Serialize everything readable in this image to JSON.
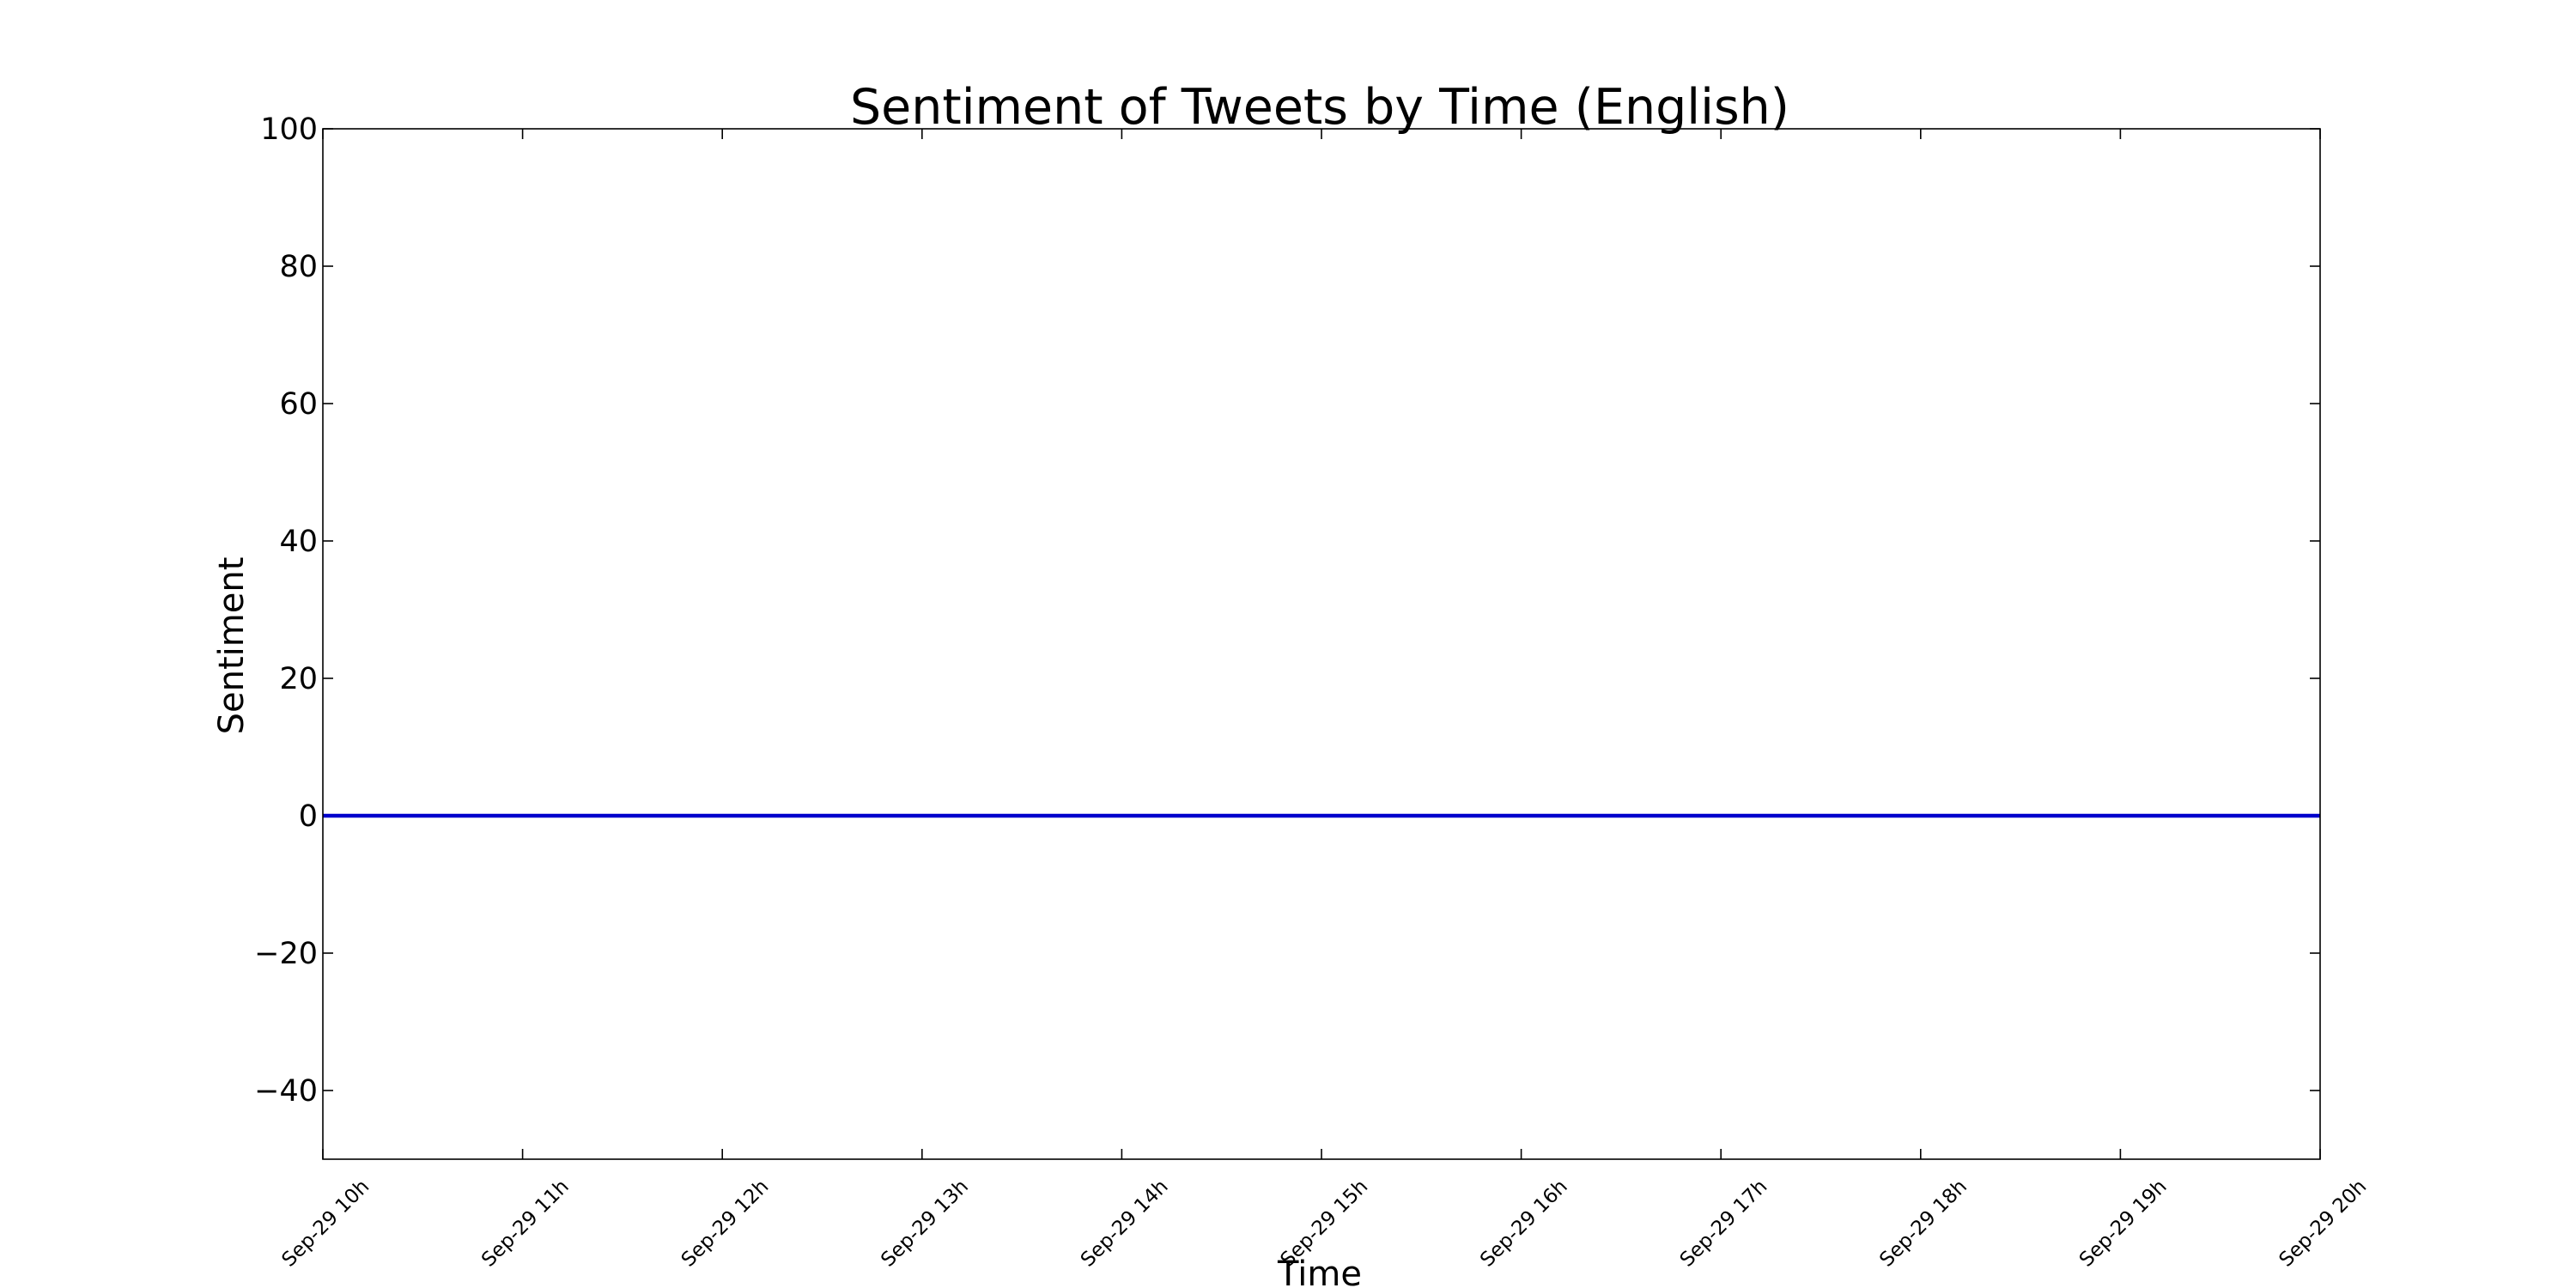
{
  "chart_data": {
    "type": "line",
    "title": "Sentiment of Tweets by Time (English)",
    "xlabel": "Time",
    "ylabel": "Sentiment",
    "x_tick_labels": [
      "Sep-29 10h",
      "Sep-29 11h",
      "Sep-29 12h",
      "Sep-29 13h",
      "Sep-29 14h",
      "Sep-29 15h",
      "Sep-29 16h",
      "Sep-29 17h",
      "Sep-29 18h",
      "Sep-29 19h",
      "Sep-29 20h"
    ],
    "y_tick_values": [
      100,
      80,
      60,
      40,
      20,
      0,
      -20,
      -40
    ],
    "y_tick_labels": [
      "100",
      "80",
      "60",
      "40",
      "20",
      "0",
      "−20",
      "−40"
    ],
    "ylim": [
      -50,
      100
    ],
    "grid": false,
    "legend": "none",
    "series": [
      {
        "color": "#0000cc",
        "x": [
          "Sep-29 10h",
          "Sep-29 11h",
          "Sep-29 12h",
          "Sep-29 13h",
          "Sep-29 14h",
          "Sep-29 15h",
          "Sep-29 16h",
          "Sep-29 17h",
          "Sep-29 18h",
          "Sep-29 19h",
          "Sep-29 20h"
        ],
        "y": [
          0,
          0,
          0,
          0,
          0,
          0,
          0,
          0,
          0,
          0,
          0
        ]
      }
    ]
  }
}
